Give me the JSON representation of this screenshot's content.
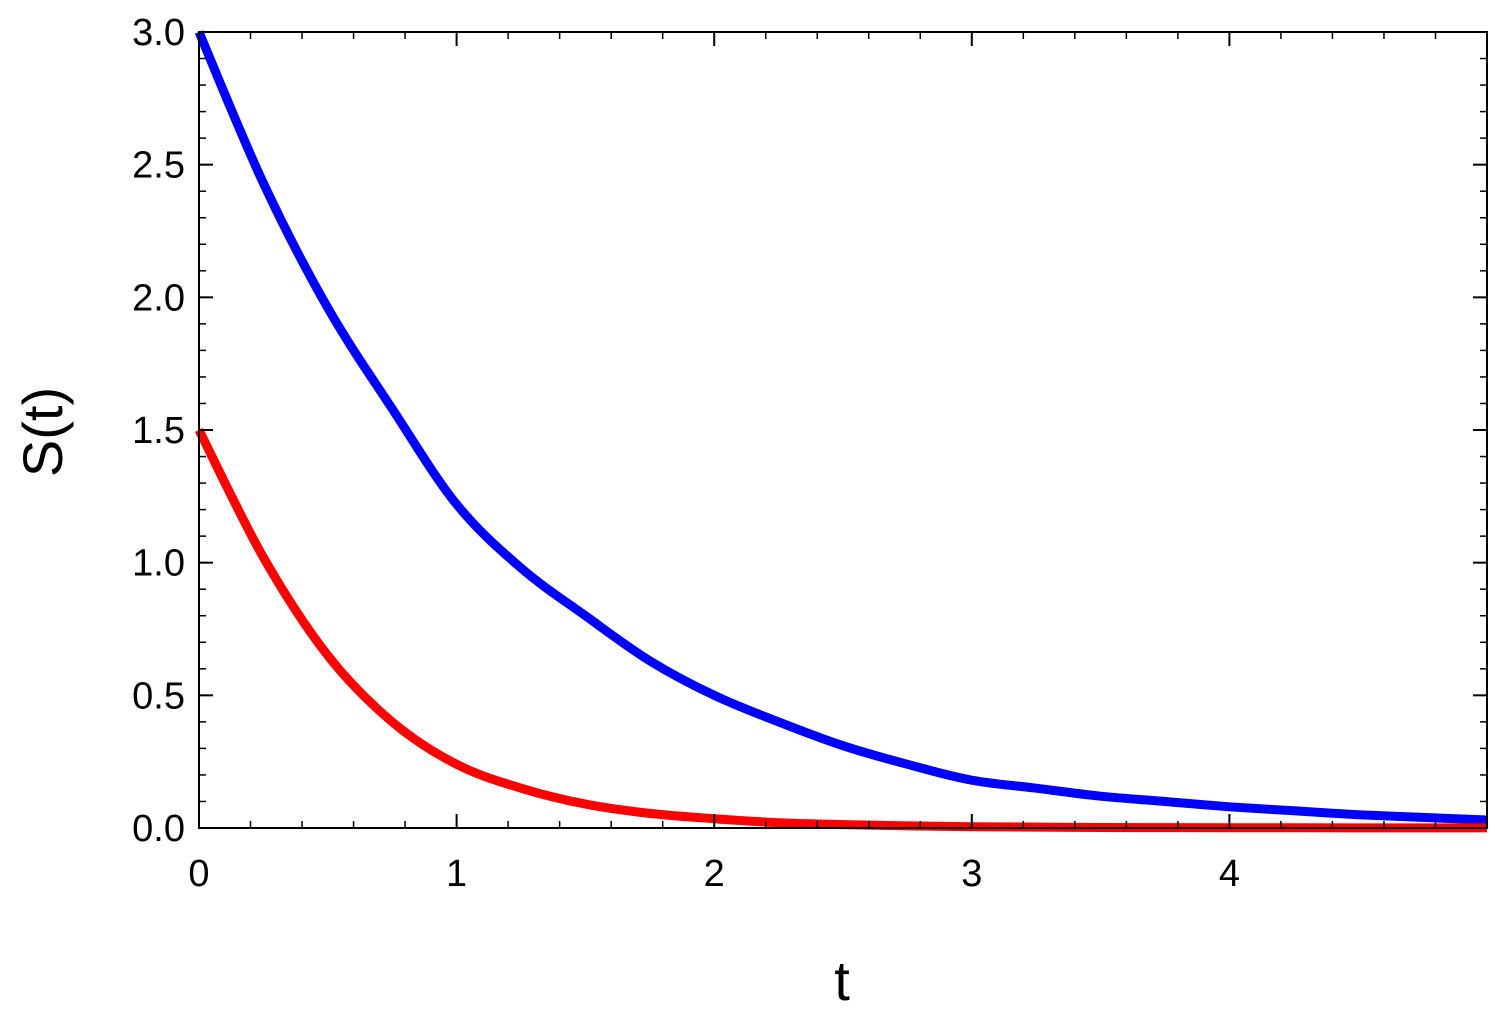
{
  "chart_data": {
    "type": "line",
    "title": "",
    "xlabel": "t",
    "ylabel": "S(t)",
    "xlim": [
      0,
      5
    ],
    "ylim": [
      0,
      3.0
    ],
    "x_ticks": [
      0,
      1,
      2,
      3,
      4
    ],
    "x_tick_labels": [
      "0",
      "1",
      "2",
      "3",
      "4"
    ],
    "y_ticks": [
      0,
      0.5,
      1.0,
      1.5,
      2.0,
      2.5,
      3.0
    ],
    "y_tick_labels": [
      "0.0",
      "0.5",
      "1.0",
      "1.5",
      "2.0",
      "2.5",
      "3.0"
    ],
    "grid": false,
    "legend": "none",
    "series": [
      {
        "color": "#0000ff",
        "x": [
          0,
          0.25,
          0.5,
          0.75,
          1.0,
          1.25,
          1.5,
          1.75,
          2.0,
          2.25,
          2.5,
          2.75,
          3.0,
          3.25,
          3.5,
          3.75,
          4.0,
          4.25,
          4.5,
          4.75,
          5.0
        ],
        "y": [
          3.0,
          2.43,
          1.96,
          1.58,
          1.22,
          0.98,
          0.8,
          0.63,
          0.5,
          0.4,
          0.31,
          0.24,
          0.18,
          0.15,
          0.12,
          0.1,
          0.08,
          0.065,
          0.05,
          0.04,
          0.03
        ]
      },
      {
        "color": "#ff0000",
        "x": [
          0,
          0.25,
          0.5,
          0.75,
          1.0,
          1.25,
          1.5,
          1.75,
          2.0,
          2.25,
          2.5,
          2.75,
          3.0,
          3.5,
          4.0,
          4.5,
          5.0
        ],
        "y": [
          1.5,
          1.02,
          0.65,
          0.4,
          0.24,
          0.15,
          0.09,
          0.055,
          0.035,
          0.02,
          0.013,
          0.008,
          0.005,
          0.002,
          0.001,
          0.0005,
          0.0002
        ]
      }
    ]
  }
}
